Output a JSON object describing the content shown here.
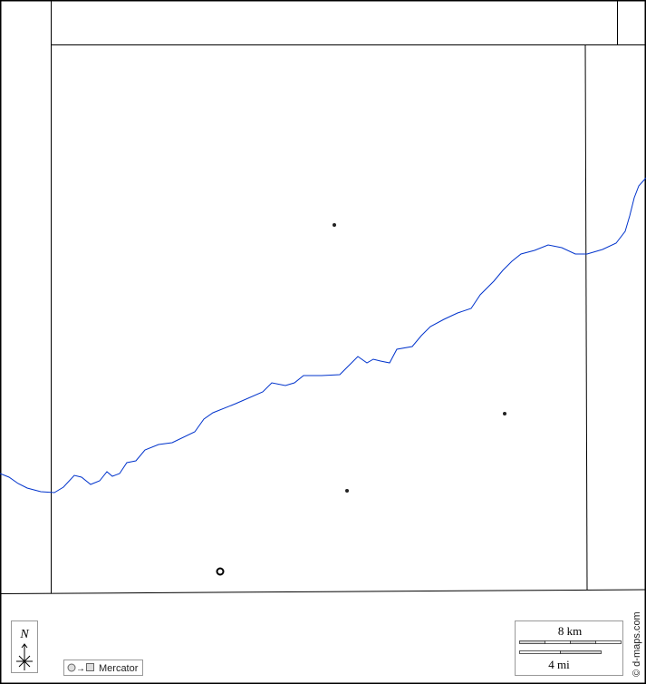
{
  "map": {
    "colors": {
      "river": "#0033cc",
      "border": "#000000",
      "scale_fill": "#d3d3d3"
    },
    "compass": {
      "label": "N",
      "icon": "north-arrow-icon"
    },
    "projection": {
      "label": "Mercator",
      "icon": "circle-to-square-icon"
    },
    "scale": {
      "km_label": "8 km",
      "mi_label": "4 mi"
    },
    "credit": "© d-maps.com",
    "markers": [
      {
        "type": "dot"
      },
      {
        "type": "dot"
      },
      {
        "type": "dot"
      },
      {
        "type": "ring"
      }
    ]
  }
}
